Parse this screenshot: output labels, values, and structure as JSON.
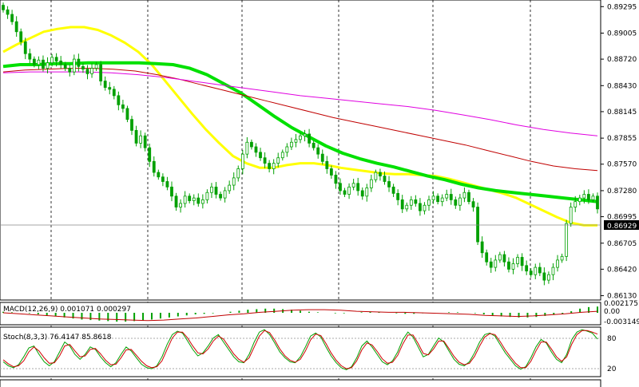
{
  "chart_data": {
    "type": "candlestick",
    "title": "",
    "main": {
      "y_ticks": [
        "0.89295",
        "0.89005",
        "0.88720",
        "0.88430",
        "0.88145",
        "0.87855",
        "0.87570",
        "0.87280",
        "0.86995",
        "0.86705",
        "0.86420",
        "0.86130"
      ],
      "current_price": "0.86929",
      "candle_colors": {
        "bull": "#00a000",
        "bear": "#00a000"
      },
      "close_series": [
        0.8926,
        0.8921,
        0.8913,
        0.8902,
        0.8891,
        0.8878,
        0.8872,
        0.8866,
        0.8871,
        0.8862,
        0.8868,
        0.8874,
        0.887,
        0.8866,
        0.8862,
        0.8858,
        0.8872,
        0.8864,
        0.8861,
        0.8856,
        0.8862,
        0.8866,
        0.8848,
        0.8841,
        0.8839,
        0.8832,
        0.8822,
        0.8818,
        0.8806,
        0.8794,
        0.878,
        0.8788,
        0.8775,
        0.876,
        0.8748,
        0.8743,
        0.8738,
        0.8732,
        0.8722,
        0.871,
        0.8714,
        0.8722,
        0.8717,
        0.872,
        0.8714,
        0.8718,
        0.8726,
        0.8732,
        0.8724,
        0.872,
        0.8728,
        0.8734,
        0.8742,
        0.8752,
        0.8768,
        0.8781,
        0.8776,
        0.877,
        0.8764,
        0.8758,
        0.8752,
        0.8758,
        0.8764,
        0.877,
        0.8776,
        0.8781,
        0.8784,
        0.8788,
        0.879,
        0.878,
        0.8775,
        0.8768,
        0.876,
        0.8752,
        0.8745,
        0.8736,
        0.8728,
        0.8724,
        0.8732,
        0.8736,
        0.8728,
        0.8722,
        0.8731,
        0.874,
        0.8748,
        0.8744,
        0.8738,
        0.8732,
        0.8725,
        0.8718,
        0.8708,
        0.8712,
        0.8718,
        0.8714,
        0.8706,
        0.8712,
        0.8718,
        0.8722,
        0.8716,
        0.872,
        0.8724,
        0.8718,
        0.8712,
        0.872,
        0.8726,
        0.8716,
        0.871,
        0.8672,
        0.866,
        0.865,
        0.8644,
        0.8652,
        0.8658,
        0.865,
        0.8642,
        0.8648,
        0.8655,
        0.8646,
        0.864,
        0.8636,
        0.8644,
        0.8638,
        0.863,
        0.8636,
        0.8644,
        0.8652,
        0.8656,
        0.8692,
        0.871,
        0.8716,
        0.872,
        0.8724,
        0.8718,
        0.8722,
        0.8708
      ],
      "ma_series": [
        {
          "color": "#ffff00",
          "width": 3,
          "values": [
            0.888,
            0.8888,
            0.8895,
            0.8902,
            0.8905,
            0.8907,
            0.8907,
            0.8904,
            0.8898,
            0.889,
            0.888,
            0.8866,
            0.8848,
            0.883,
            0.8812,
            0.8795,
            0.878,
            0.8766,
            0.8758,
            0.8753,
            0.8753,
            0.8756,
            0.8758,
            0.8758,
            0.8756,
            0.8753,
            0.8751,
            0.8749,
            0.8747,
            0.8746,
            0.8746,
            0.8745,
            0.8744,
            0.8741,
            0.8737,
            0.8733,
            0.8729,
            0.8725,
            0.872,
            0.8713,
            0.8706,
            0.8699,
            0.8693,
            0.869,
            0.869
          ]
        },
        {
          "color": "#00e000",
          "width": 4,
          "values": [
            0.8864,
            0.8866,
            0.8866,
            0.8867,
            0.8867,
            0.8868,
            0.8868,
            0.8868,
            0.8868,
            0.8867,
            0.8866,
            0.8862,
            0.8855,
            0.8845,
            0.8835,
            0.8822,
            0.8809,
            0.8797,
            0.8787,
            0.8777,
            0.8769,
            0.8763,
            0.8758,
            0.8754,
            0.8749,
            0.8744,
            0.874,
            0.8735,
            0.8731,
            0.8728,
            0.8726,
            0.8724,
            0.8722,
            0.872,
            0.8718,
            0.8716
          ]
        },
        {
          "color": "#c00000",
          "width": 1,
          "values": [
            0.8858,
            0.886,
            0.8861,
            0.8862,
            0.8862,
            0.8861,
            0.8859,
            0.8855,
            0.885,
            0.8844,
            0.8838,
            0.8832,
            0.8826,
            0.882,
            0.8814,
            0.8808,
            0.8803,
            0.8798,
            0.8793,
            0.8788,
            0.8783,
            0.8778,
            0.8772,
            0.8766,
            0.876,
            0.8755,
            0.8752,
            0.875
          ]
        },
        {
          "color": "#e000e0",
          "width": 1,
          "values": [
            0.8857,
            0.8858,
            0.8858,
            0.8858,
            0.8857,
            0.8855,
            0.8852,
            0.8848,
            0.8844,
            0.884,
            0.8836,
            0.8832,
            0.8829,
            0.8826,
            0.8823,
            0.882,
            0.8816,
            0.8811,
            0.8806,
            0.88,
            0.8795,
            0.8791,
            0.8788
          ]
        }
      ]
    },
    "macd": {
      "label": "MACD(12,26,9) 0.001071 0.000297",
      "ticks": [
        "0.002175",
        "0.00",
        "-0.003149"
      ],
      "hist": [
        0.0002,
        0.0001,
        0.0,
        -0.0001,
        -0.0003,
        -0.0005,
        -0.0007,
        -0.0009,
        -0.0011,
        -0.0013,
        -0.0014,
        -0.0015,
        -0.0016,
        -0.0017,
        -0.0017,
        -0.0016,
        -0.0015,
        -0.0013,
        -0.0011,
        -0.0009,
        -0.0007,
        -0.0005,
        -0.0003,
        -0.0002,
        -0.0001,
        0.0,
        0.0002,
        0.0004,
        0.0006,
        0.0007,
        0.0008,
        0.0008,
        0.0007,
        0.0006,
        0.0004,
        0.0002,
        0.0001,
        0.0,
        -0.0001,
        -0.0001,
        0.0,
        0.0001,
        0.0002,
        0.0001,
        0.0,
        -0.0001,
        -0.0002,
        -0.0002,
        -0.0001,
        0.0,
        0.0,
        0.0001,
        0.0001,
        0.0,
        -0.0001,
        -0.0003,
        -0.0005,
        -0.0007,
        -0.0008,
        -0.0009,
        -0.0009,
        -0.0008,
        -0.0006,
        -0.0004,
        -0.0002,
        0.0003,
        0.0008,
        0.0011,
        0.0012
      ],
      "signal": [
        0.0,
        -0.0002,
        -0.0004,
        -0.0006,
        -0.0008,
        -0.001,
        -0.0012,
        -0.0013,
        -0.0014,
        -0.0015,
        -0.0014,
        -0.0012,
        -0.001,
        -0.0007,
        -0.0004,
        -0.0002,
        0.0001,
        0.0003,
        0.0005,
        0.0006,
        0.0006,
        0.0005,
        0.0003,
        0.0002,
        0.0001,
        0.0001,
        0.0,
        -0.0001,
        -0.0002,
        -0.0003,
        -0.0005,
        -0.0006,
        -0.0007,
        -0.0006,
        -0.0004,
        -0.0002,
        0.0001,
        0.0003
      ]
    },
    "stoch": {
      "label": "Stoch(8,3,3) 76.4147 85.8618",
      "ticks": [
        "80",
        "20"
      ],
      "k": [
        30,
        22,
        18,
        24,
        40,
        58,
        62,
        45,
        30,
        22,
        30,
        50,
        70,
        62,
        45,
        35,
        45,
        60,
        55,
        40,
        28,
        20,
        28,
        45,
        60,
        52,
        38,
        25,
        18,
        16,
        22,
        40,
        65,
        85,
        92,
        88,
        72,
        55,
        42,
        48,
        62,
        78,
        85,
        70,
        55,
        40,
        30,
        28,
        45,
        70,
        90,
        95,
        85,
        68,
        50,
        38,
        30,
        28,
        40,
        60,
        82,
        88,
        80,
        60,
        42,
        28,
        18,
        14,
        20,
        38,
        62,
        72,
        60,
        45,
        30,
        24,
        32,
        50,
        75,
        90,
        80,
        60,
        40,
        45,
        62,
        78,
        70,
        52,
        35,
        25,
        22,
        30,
        48,
        70,
        85,
        88,
        82,
        65,
        48,
        35,
        22,
        15,
        20,
        38,
        60,
        75,
        68,
        50,
        35,
        28,
        45,
        75,
        90,
        95,
        92,
        88,
        76
      ],
      "d": [
        34,
        26,
        20,
        22,
        32,
        50,
        60,
        52,
        38,
        27,
        28,
        42,
        62,
        65,
        52,
        40,
        42,
        55,
        57,
        46,
        33,
        24,
        25,
        38,
        54,
        55,
        43,
        31,
        22,
        18,
        20,
        32,
        55,
        78,
        90,
        90,
        78,
        62,
        48,
        46,
        56,
        72,
        82,
        76,
        61,
        46,
        35,
        29,
        38,
        60,
        82,
        93,
        89,
        74,
        56,
        42,
        33,
        29,
        35,
        52,
        74,
        86,
        83,
        67,
        48,
        33,
        22,
        16,
        18,
        32,
        54,
        68,
        64,
        51,
        36,
        27,
        29,
        43,
        66,
        84,
        84,
        67,
        47,
        44,
        56,
        72,
        72,
        57,
        41,
        29,
        24,
        27,
        41,
        62,
        80,
        87,
        85,
        71,
        54,
        40,
        27,
        18,
        18,
        31,
        52,
        70,
        70,
        56,
        40,
        31,
        40,
        66,
        85,
        93,
        93,
        90,
        86
      ]
    }
  }
}
